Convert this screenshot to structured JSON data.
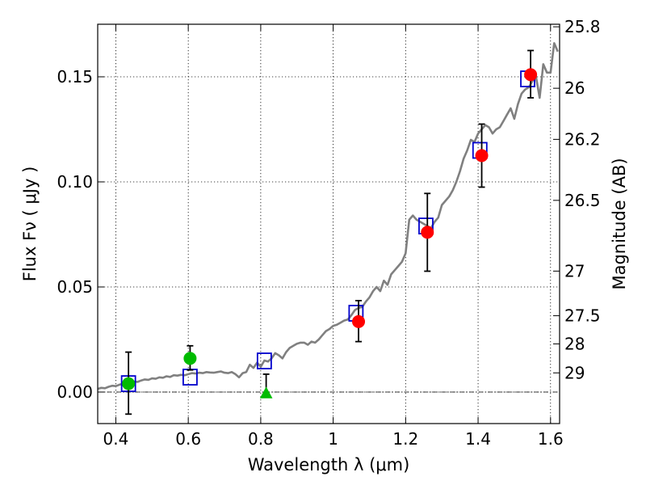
{
  "chart_data": {
    "type": "scatter",
    "title": "",
    "xlabel": "Wavelength  λ (μm)",
    "ylabel": "Flux  Fν  ( μJy )",
    "ylabel_right": "Magnitude (AB)",
    "xlim": [
      0.35,
      1.625
    ],
    "ylim": [
      -0.015,
      0.175
    ],
    "grid": true,
    "x_ticks": [
      {
        "value": 0.4,
        "label": "0.4"
      },
      {
        "value": 0.6,
        "label": "0.6"
      },
      {
        "value": 0.8,
        "label": "0.8"
      },
      {
        "value": 1.0,
        "label": "1"
      },
      {
        "value": 1.2,
        "label": "1.2"
      },
      {
        "value": 1.4,
        "label": "1.4"
      },
      {
        "value": 1.6,
        "label": "1.6"
      }
    ],
    "y_ticks": [
      {
        "value": 0.0,
        "label": "0.00"
      },
      {
        "value": 0.05,
        "label": "0.05"
      },
      {
        "value": 0.1,
        "label": "0.10"
      },
      {
        "value": 0.15,
        "label": "0.15"
      }
    ],
    "right_ticks": [
      {
        "mag": 25.8,
        "label": "25.8"
      },
      {
        "mag": 26.0,
        "label": "26"
      },
      {
        "mag": 26.2,
        "label": "26.2"
      },
      {
        "mag": 26.5,
        "label": "26.5"
      },
      {
        "mag": 27.0,
        "label": "27"
      },
      {
        "mag": 27.5,
        "label": "27.5"
      },
      {
        "mag": 28.0,
        "label": "28"
      },
      {
        "mag": 29.0,
        "label": "29"
      }
    ],
    "zero_line": 0.0,
    "colors": {
      "spectrum": "#808080",
      "model": "#0000cc",
      "observed_red": "#ff0000",
      "observed_green": "#00bb00",
      "error": "#000000"
    },
    "series": [
      {
        "kind": "spectrum",
        "x": [
          0.35,
          0.36,
          0.37,
          0.38,
          0.39,
          0.4,
          0.41,
          0.42,
          0.43,
          0.44,
          0.45,
          0.46,
          0.47,
          0.48,
          0.49,
          0.5,
          0.51,
          0.52,
          0.53,
          0.54,
          0.55,
          0.56,
          0.57,
          0.58,
          0.59,
          0.6,
          0.61,
          0.62,
          0.63,
          0.64,
          0.65,
          0.66,
          0.67,
          0.68,
          0.69,
          0.7,
          0.71,
          0.72,
          0.73,
          0.74,
          0.75,
          0.76,
          0.77,
          0.78,
          0.79,
          0.8,
          0.81,
          0.82,
          0.83,
          0.84,
          0.85,
          0.86,
          0.87,
          0.88,
          0.89,
          0.9,
          0.91,
          0.92,
          0.93,
          0.94,
          0.95,
          0.96,
          0.97,
          0.98,
          0.99,
          1.0,
          1.01,
          1.02,
          1.03,
          1.04,
          1.05,
          1.06,
          1.07,
          1.08,
          1.09,
          1.1,
          1.11,
          1.12,
          1.13,
          1.14,
          1.15,
          1.16,
          1.17,
          1.18,
          1.19,
          1.2,
          1.21,
          1.22,
          1.23,
          1.24,
          1.25,
          1.26,
          1.27,
          1.28,
          1.29,
          1.3,
          1.31,
          1.32,
          1.33,
          1.34,
          1.35,
          1.36,
          1.37,
          1.38,
          1.39,
          1.4,
          1.41,
          1.42,
          1.43,
          1.44,
          1.45,
          1.46,
          1.47,
          1.48,
          1.49,
          1.5,
          1.51,
          1.52,
          1.53,
          1.54,
          1.55,
          1.56,
          1.57,
          1.58,
          1.59,
          1.6,
          1.61,
          1.62
        ],
        "y": [
          0.0015,
          0.002,
          0.0018,
          0.0025,
          0.003,
          0.0028,
          0.0035,
          0.004,
          0.0038,
          0.0045,
          0.005,
          0.0048,
          0.0055,
          0.006,
          0.0058,
          0.0065,
          0.0063,
          0.007,
          0.0068,
          0.0075,
          0.0072,
          0.008,
          0.0078,
          0.0082,
          0.008,
          0.0085,
          0.009,
          0.0088,
          0.0092,
          0.009,
          0.0095,
          0.0093,
          0.0092,
          0.0095,
          0.0098,
          0.0092,
          0.009,
          0.0095,
          0.0085,
          0.007,
          0.009,
          0.0095,
          0.013,
          0.0115,
          0.014,
          0.012,
          0.015,
          0.0145,
          0.016,
          0.0185,
          0.0175,
          0.016,
          0.019,
          0.021,
          0.022,
          0.023,
          0.0235,
          0.0235,
          0.0225,
          0.024,
          0.0235,
          0.025,
          0.027,
          0.029,
          0.03,
          0.0315,
          0.032,
          0.033,
          0.034,
          0.0345,
          0.0365,
          0.039,
          0.04,
          0.0405,
          0.043,
          0.045,
          0.048,
          0.05,
          0.048,
          0.053,
          0.051,
          0.056,
          0.058,
          0.06,
          0.062,
          0.066,
          0.082,
          0.084,
          0.082,
          0.081,
          0.08,
          0.079,
          0.078,
          0.081,
          0.083,
          0.089,
          0.091,
          0.093,
          0.096,
          0.1,
          0.105,
          0.111,
          0.115,
          0.12,
          0.119,
          0.123,
          0.125,
          0.127,
          0.126,
          0.123,
          0.125,
          0.126,
          0.129,
          0.132,
          0.135,
          0.13,
          0.137,
          0.142,
          0.144,
          0.145,
          0.148,
          0.15,
          0.14,
          0.156,
          0.152,
          0.152,
          0.166,
          0.162
        ]
      },
      {
        "kind": "model",
        "marker": "open-square",
        "x": [
          0.435,
          0.605,
          0.81,
          1.063,
          1.256,
          1.405,
          1.537
        ],
        "y": [
          0.004,
          0.0071,
          0.0148,
          0.0375,
          0.079,
          0.115,
          0.149
        ]
      },
      {
        "kind": "observed",
        "marker": "filled-circle",
        "color": "observed_red",
        "x": [
          1.07,
          1.26,
          1.41,
          1.545
        ],
        "y": [
          0.0335,
          0.076,
          0.1125,
          0.151
        ],
        "err_low": [
          0.024,
          0.0575,
          0.0975,
          0.14
        ],
        "err_high": [
          0.0435,
          0.0945,
          0.1275,
          0.1625
        ]
      },
      {
        "kind": "observed",
        "marker": "filled-circle",
        "color": "observed_green",
        "x": [
          0.435,
          0.605
        ],
        "y": [
          0.004,
          0.016
        ],
        "err_low": [
          -0.0105,
          0.0105
        ],
        "err_high": [
          0.019,
          0.022
        ]
      },
      {
        "kind": "upper-limit",
        "marker": "filled-triangle",
        "color": "observed_green",
        "x": [
          0.815
        ],
        "y": [
          -0.0005
        ],
        "err_low": [
          -0.0005
        ],
        "err_high": [
          0.0085
        ]
      }
    ]
  }
}
